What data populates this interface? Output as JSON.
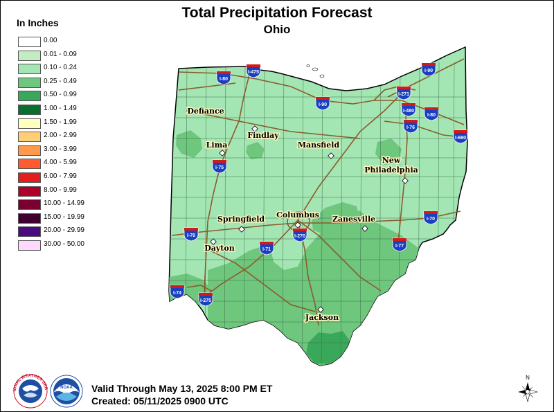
{
  "title": "Total Precipitation Forecast",
  "subtitle": "Ohio",
  "legend": {
    "title": "In Inches",
    "items": [
      {
        "label": "0.00",
        "color": "#ffffff"
      },
      {
        "label": "0.01 - 0.09",
        "color": "#c4ecc2"
      },
      {
        "label": "0.10 - 0.24",
        "color": "#a3e6b3"
      },
      {
        "label": "0.25 - 0.49",
        "color": "#6fc67d"
      },
      {
        "label": "0.50 - 0.99",
        "color": "#3aa85a"
      },
      {
        "label": "1.00 - 1.49",
        "color": "#0a6e2e"
      },
      {
        "label": "1.50 - 1.99",
        "color": "#ffffc0"
      },
      {
        "label": "2.00 - 2.99",
        "color": "#ffcf78"
      },
      {
        "label": "3.00 - 3.99",
        "color": "#ff9a4c"
      },
      {
        "label": "4.00 - 5.99",
        "color": "#ff5a30"
      },
      {
        "label": "6.00 - 7.99",
        "color": "#e31e1e"
      },
      {
        "label": "8.00 - 9.99",
        "color": "#b0002a"
      },
      {
        "label": "10.00 - 14.99",
        "color": "#7a0030"
      },
      {
        "label": "15.00 - 19.99",
        "color": "#3f0030"
      },
      {
        "label": "20.00 - 29.99",
        "color": "#4a0a80"
      },
      {
        "label": "30.00 - 50.00",
        "color": "#ffd8ff"
      }
    ]
  },
  "cities": [
    {
      "name": "Defiance",
      "lines": [
        "Defiance"
      ]
    },
    {
      "name": "Findlay",
      "lines": [
        "Findlay"
      ]
    },
    {
      "name": "Lima",
      "lines": [
        "Lima"
      ]
    },
    {
      "name": "Mansfield",
      "lines": [
        "Mansfield"
      ]
    },
    {
      "name": "New Philadelphia",
      "lines": [
        "New",
        "Philadelphia"
      ]
    },
    {
      "name": "Springfield",
      "lines": [
        "Springfield"
      ]
    },
    {
      "name": "Columbus",
      "lines": [
        "Columbus"
      ]
    },
    {
      "name": "Zanesville",
      "lines": [
        "Zanesville"
      ]
    },
    {
      "name": "Dayton",
      "lines": [
        "Dayton"
      ]
    },
    {
      "name": "Jackson",
      "lines": [
        "Jackson"
      ]
    }
  ],
  "highways": [
    "I-80",
    "I-475",
    "I-90",
    "I-271",
    "I-90",
    "I-480",
    "I-80",
    "I-76",
    "I-680",
    "I-75",
    "I-70",
    "I-270",
    "I-71",
    "I-77",
    "I-70",
    "I-74",
    "I-275"
  ],
  "footer": {
    "valid": "Valid Through May 13, 2025 8:00 PM ET",
    "created": "Created: 05/11/2025 0900 UTC"
  },
  "compass": {
    "label": "N"
  },
  "logos": [
    {
      "name": "National Weather Service",
      "text": "NATIONAL WEATHER SERVICE"
    },
    {
      "name": "NOAA",
      "text": "NOAA"
    }
  ],
  "colors": {
    "roads": "#8b5a2b",
    "interstate_shield": "#1a3fbf",
    "interstate_top": "#d11a1a"
  }
}
